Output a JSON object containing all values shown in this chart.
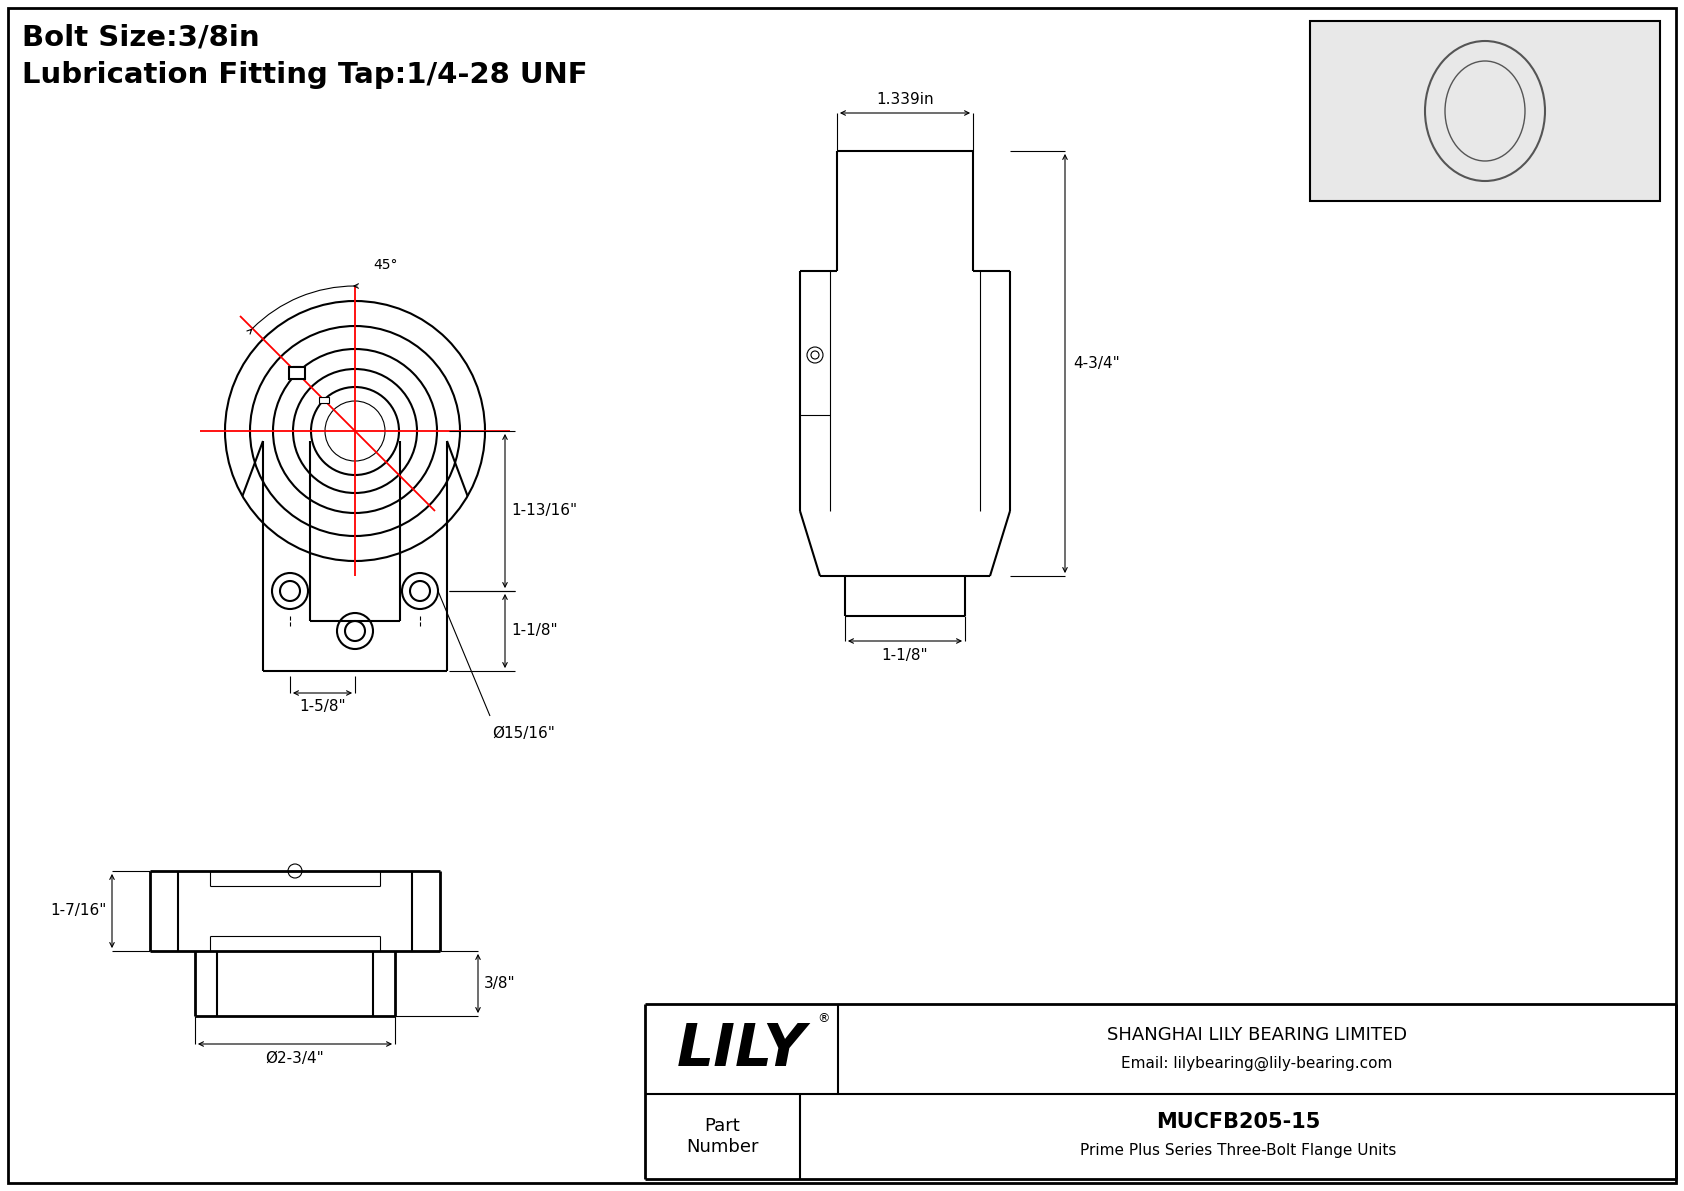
{
  "bg_color": "#ffffff",
  "line_color": "#000000",
  "red_color": "#ff0000",
  "title_line1": "Bolt Size:3/8in",
  "title_line2": "Lubrication Fitting Tap:1/4-28 UNF",
  "company": "SHANGHAI LILY BEARING LIMITED",
  "email": "Email: lilybearing@lily-bearing.com",
  "part_number_label": "Part\nNumber",
  "part_number": "MUCFB205-15",
  "part_desc": "Prime Plus Series Three-Bolt Flange Units",
  "dim_45": "45°",
  "dim_1_13_16": "1-13/16\"",
  "dim_1_1_8_front": "1-1/8\"",
  "dim_bolt_hole": "Ø15/16\"",
  "dim_1_5_8": "1-5/8\"",
  "dim_1_339": "1.339in",
  "dim_4_3_4": "4-3/4\"",
  "dim_1_1_8_side": "1-1/8\"",
  "dim_3_8": "3/8\"",
  "dim_1_7_16": "1-7/16\"",
  "dim_2_3_4": "Ø2-3/4\""
}
